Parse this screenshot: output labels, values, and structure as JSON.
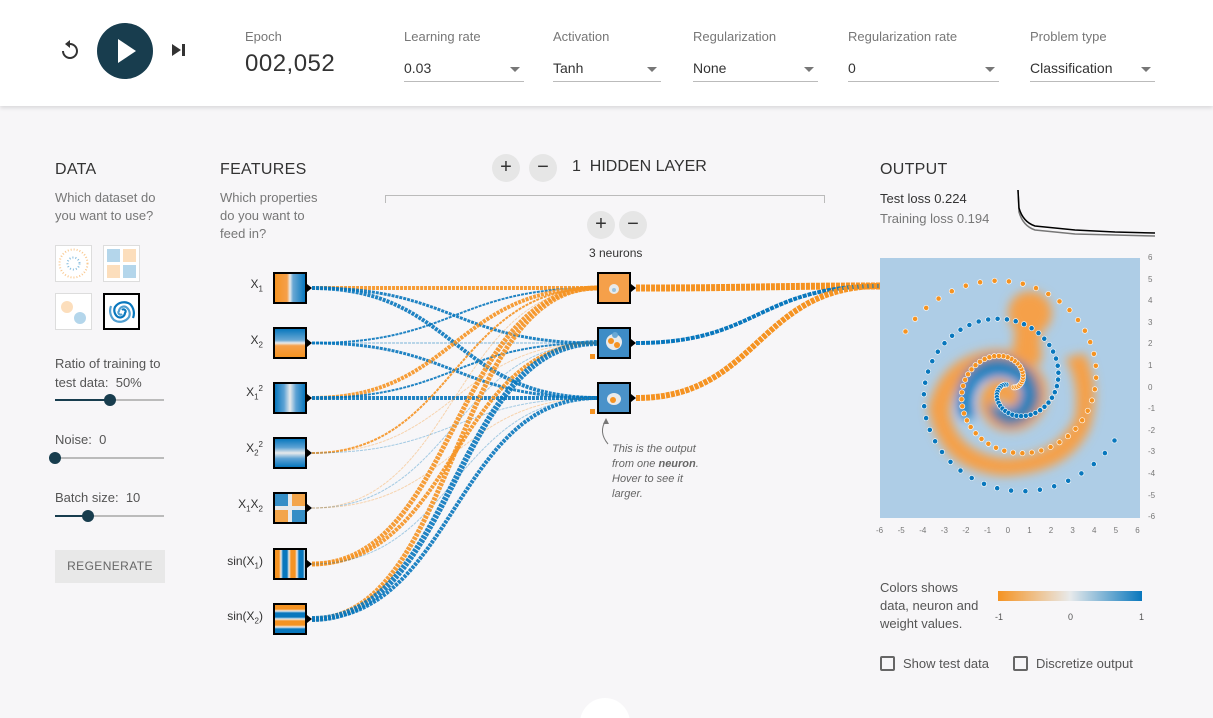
{
  "topbar": {
    "epoch_label": "Epoch",
    "epoch_value": "002,052",
    "learning_rate": {
      "label": "Learning rate",
      "value": "0.03"
    },
    "activation": {
      "label": "Activation",
      "value": "Tanh"
    },
    "regularization": {
      "label": "Regularization",
      "value": "None"
    },
    "regularization_rate": {
      "label": "Regularization rate",
      "value": "0"
    },
    "problem_type": {
      "label": "Problem type",
      "value": "Classification"
    }
  },
  "data_panel": {
    "title": "DATA",
    "subtitle": "Which dataset do you want to use?",
    "selected_dataset": "spiral",
    "ratio_label": "Ratio of training to test data:",
    "ratio_value": "50%",
    "ratio_level": 0.5,
    "noise_label": "Noise:",
    "noise_value": "0",
    "noise_level": 0,
    "batch_label": "Batch size:",
    "batch_value": "10",
    "batch_level": 0.3,
    "regenerate_label": "REGENERATE"
  },
  "features_panel": {
    "title": "FEATURES",
    "subtitle": "Which properties do you want to feed in?"
  },
  "network": {
    "layer_count": "1",
    "layers_label": "HIDDEN LAYER",
    "neurons_label": "3 neurons",
    "callout_pre": "This is the output from one ",
    "callout_bold": "neuron",
    "callout_post": ". Hover to see it larger."
  },
  "output": {
    "title": "OUTPUT",
    "test_loss_label": "Test loss",
    "test_loss_value": "0.224",
    "training_loss_label": "Training loss",
    "training_loss_value": "0.194",
    "legend_text": "Colors shows data, neuron and weight values.",
    "colorbar_ticks": [
      "-1",
      "0",
      "1"
    ],
    "show_test_data_label": "Show test data",
    "discretize_label": "Discretize output",
    "axis_ticks": [
      "-6",
      "-5",
      "-4",
      "-3",
      "-2",
      "-1",
      "0",
      "1",
      "2",
      "3",
      "4",
      "5",
      "6"
    ]
  },
  "colors": {
    "orange": "#f59322",
    "blue": "#0877bd",
    "dark": "#183d4e"
  }
}
